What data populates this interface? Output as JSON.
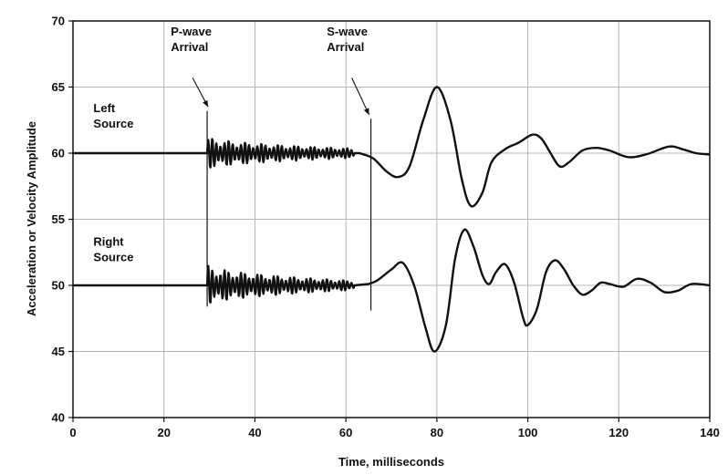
{
  "chart_data": {
    "type": "line",
    "title": "",
    "xlabel": "Time, milliseconds",
    "ylabel": "Acceleration or Velocity Amplitude",
    "xlim": [
      0,
      140
    ],
    "ylim": [
      40,
      70
    ],
    "xticks": [
      0,
      20,
      40,
      60,
      80,
      100,
      120,
      140
    ],
    "yticks": [
      40,
      45,
      50,
      55,
      60,
      65,
      70
    ],
    "grid": true,
    "legend": "none",
    "series": [
      {
        "label": "Left Source",
        "baseline": 60,
        "smooth_points": [
          [
            0,
            60
          ],
          [
            29.5,
            60
          ],
          [
            61,
            60
          ],
          [
            63,
            60
          ],
          [
            66,
            59.6
          ],
          [
            69,
            58.6
          ],
          [
            71.5,
            58.2
          ],
          [
            74,
            59
          ],
          [
            77,
            62.5
          ],
          [
            80,
            65
          ],
          [
            83,
            62.5
          ],
          [
            85.5,
            58
          ],
          [
            87.5,
            56
          ],
          [
            90,
            57
          ],
          [
            92,
            59.3
          ],
          [
            95,
            60.3
          ],
          [
            98,
            60.8
          ],
          [
            101,
            61.4
          ],
          [
            103,
            61.1
          ],
          [
            105,
            60
          ],
          [
            107,
            59
          ],
          [
            109,
            59.3
          ],
          [
            112,
            60.2
          ],
          [
            115,
            60.4
          ],
          [
            118,
            60.2
          ],
          [
            122,
            59.7
          ],
          [
            126,
            59.9
          ],
          [
            131,
            60.5
          ],
          [
            134,
            60.3
          ],
          [
            137,
            60
          ],
          [
            140,
            59.9
          ]
        ]
      },
      {
        "label": "Right Source",
        "baseline": 50,
        "smooth_points": [
          [
            0,
            50
          ],
          [
            29.5,
            50
          ],
          [
            61,
            50
          ],
          [
            65,
            50.1
          ],
          [
            67,
            50.4
          ],
          [
            70,
            51.2
          ],
          [
            72.5,
            51.7
          ],
          [
            75,
            50
          ],
          [
            77.5,
            46.8
          ],
          [
            79.5,
            45
          ],
          [
            82,
            47
          ],
          [
            84,
            52
          ],
          [
            86,
            54.2
          ],
          [
            88,
            53
          ],
          [
            90,
            50.8
          ],
          [
            91.5,
            50.1
          ],
          [
            93,
            51
          ],
          [
            95,
            51.6
          ],
          [
            97,
            50.2
          ],
          [
            99,
            47.5
          ],
          [
            100,
            47
          ],
          [
            102,
            48.2
          ],
          [
            104,
            51
          ],
          [
            106,
            51.9
          ],
          [
            108,
            51.2
          ],
          [
            110,
            50
          ],
          [
            112,
            49.3
          ],
          [
            114,
            49.6
          ],
          [
            116,
            50.2
          ],
          [
            118,
            50.1
          ],
          [
            121,
            49.9
          ],
          [
            124,
            50.5
          ],
          [
            127,
            50.2
          ],
          [
            130,
            49.5
          ],
          [
            133,
            49.6
          ],
          [
            136,
            50.1
          ],
          [
            140,
            50
          ]
        ]
      }
    ],
    "noise": [
      {
        "t0": 29.5,
        "t1": 62,
        "amp_start": 1.3,
        "amp_end": 0.35,
        "period": 0.9
      },
      {
        "t0": 29.5,
        "t1": 62,
        "amp_start": 1.6,
        "amp_end": 0.35,
        "period": 0.9
      }
    ],
    "markers": [
      {
        "x": 29.5,
        "y_top": 63.2,
        "y_bottom": 48.4
      },
      {
        "x": 65.5,
        "y_top": 62.6,
        "y_bottom": 48.1
      }
    ],
    "annotations": [
      {
        "id": "p-wave",
        "lines": [
          "P-wave",
          "Arrival"
        ],
        "x": 21.5,
        "y": 68.9,
        "arrow_from": [
          26.3,
          65.7
        ],
        "arrow_to": [
          29.7,
          63.5
        ]
      },
      {
        "id": "s-wave",
        "lines": [
          "S-wave",
          "Arrival"
        ],
        "x": 55.8,
        "y": 68.9,
        "arrow_from": [
          61.3,
          65.7
        ],
        "arrow_to": [
          65.1,
          62.9
        ]
      },
      {
        "id": "left-source",
        "lines": [
          "Left",
          "Source"
        ],
        "x": 4.5,
        "y": 63.1
      },
      {
        "id": "right-source",
        "lines": [
          "Right",
          "Source"
        ],
        "x": 4.5,
        "y": 53.0
      }
    ]
  }
}
